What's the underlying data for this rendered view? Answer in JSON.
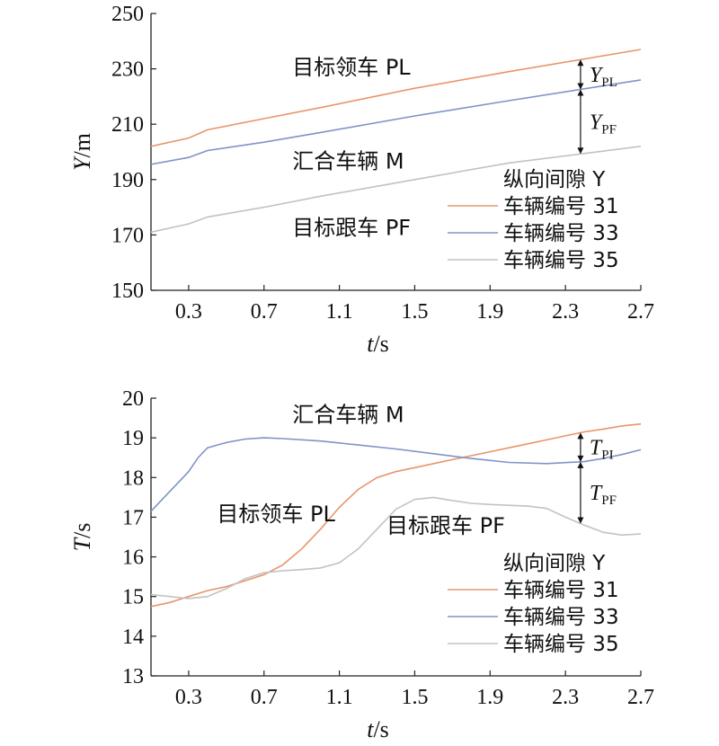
{
  "chart_data": [
    {
      "type": "line",
      "ylabel": "Y/m",
      "xlabel": "t/s",
      "xlim": [
        0.1,
        2.7
      ],
      "ylim": [
        150,
        250
      ],
      "x_ticks": [
        "0.3",
        "0.7",
        "1.1",
        "1.5",
        "1.9",
        "2.3",
        "2.7"
      ],
      "y_ticks": [
        "150",
        "170",
        "190",
        "210",
        "230",
        "250"
      ],
      "legend_title": "纵向间隙 Y",
      "legend_placement": "bottom-right",
      "annotations": [
        {
          "text": "目标领车 PL",
          "x": 0.85,
          "y": 228
        },
        {
          "text": "汇合车辆 M",
          "x": 0.85,
          "y": 194
        },
        {
          "text": "目标跟车 PF",
          "x": 0.85,
          "y": 170
        }
      ],
      "gap_labels": [
        {
          "main": "Y",
          "sub": "PL"
        },
        {
          "main": "Y",
          "sub": "PF"
        }
      ],
      "gap_x": 2.38,
      "series": [
        {
          "name": "车辆编号 31",
          "color": "#e8956b",
          "x": [
            0.1,
            0.3,
            0.4,
            0.7,
            1.0,
            1.5,
            2.0,
            2.7
          ],
          "y": [
            202,
            205,
            208,
            212,
            216,
            223,
            229,
            237
          ]
        },
        {
          "name": "车辆编号 33",
          "color": "#7f93c8",
          "x": [
            0.1,
            0.3,
            0.4,
            0.7,
            1.0,
            1.5,
            2.0,
            2.7
          ],
          "y": [
            195.5,
            198,
            200.5,
            203.5,
            207,
            213,
            218.5,
            226
          ]
        },
        {
          "name": "车辆编号 35",
          "color": "#c2c2c2",
          "x": [
            0.1,
            0.3,
            0.4,
            0.7,
            1.0,
            1.5,
            2.0,
            2.7
          ],
          "y": [
            171,
            174,
            176.5,
            180,
            184,
            190,
            196,
            202
          ]
        }
      ]
    },
    {
      "type": "line",
      "ylabel": "T/s",
      "xlabel": "t/s",
      "xlim": [
        0.1,
        2.7
      ],
      "ylim": [
        13,
        20
      ],
      "x_ticks": [
        "0.3",
        "0.7",
        "1.1",
        "1.5",
        "1.9",
        "2.3",
        "2.7"
      ],
      "y_ticks": [
        "13",
        "14",
        "15",
        "16",
        "17",
        "18",
        "19",
        "20"
      ],
      "legend_title": "纵向间隙 Y",
      "legend_placement": "bottom-right",
      "annotations": [
        {
          "text": "汇合车辆 M",
          "x": 0.85,
          "y": 19.4
        },
        {
          "text": "目标领车 PL",
          "x": 0.45,
          "y": 16.9
        },
        {
          "text": "目标跟车 PF",
          "x": 1.35,
          "y": 16.6
        }
      ],
      "gap_labels": [
        {
          "main": "T",
          "sub": "PI"
        },
        {
          "main": "T",
          "sub": "PF"
        }
      ],
      "gap_x": 2.38,
      "series": [
        {
          "name": "车辆编号 31",
          "color": "#e8956b",
          "x": [
            0.1,
            0.2,
            0.3,
            0.4,
            0.5,
            0.6,
            0.7,
            0.8,
            0.9,
            1.0,
            1.1,
            1.2,
            1.3,
            1.4,
            1.5,
            1.6,
            1.7,
            1.8,
            1.9,
            2.0,
            2.1,
            2.2,
            2.3,
            2.4,
            2.5,
            2.6,
            2.7
          ],
          "y": [
            14.75,
            14.85,
            15.0,
            15.15,
            15.25,
            15.4,
            15.55,
            15.8,
            16.2,
            16.7,
            17.25,
            17.7,
            18.0,
            18.15,
            18.25,
            18.35,
            18.45,
            18.55,
            18.65,
            18.75,
            18.85,
            18.95,
            19.05,
            19.15,
            19.22,
            19.3,
            19.35
          ]
        },
        {
          "name": "车辆编号 33",
          "color": "#7f93c8",
          "x": [
            0.1,
            0.2,
            0.3,
            0.35,
            0.4,
            0.5,
            0.6,
            0.7,
            0.8,
            1.0,
            1.2,
            1.4,
            1.6,
            1.8,
            2.0,
            2.2,
            2.4,
            2.5,
            2.6,
            2.7
          ],
          "y": [
            17.15,
            17.65,
            18.15,
            18.5,
            18.75,
            18.88,
            18.97,
            19.0,
            18.98,
            18.92,
            18.82,
            18.72,
            18.6,
            18.48,
            18.38,
            18.35,
            18.4,
            18.48,
            18.58,
            18.7
          ]
        },
        {
          "name": "车辆编号 35",
          "color": "#c2c2c2",
          "x": [
            0.1,
            0.2,
            0.3,
            0.4,
            0.5,
            0.6,
            0.7,
            0.8,
            0.9,
            1.0,
            1.1,
            1.2,
            1.3,
            1.4,
            1.5,
            1.6,
            1.7,
            1.8,
            1.9,
            2.0,
            2.1,
            2.2,
            2.3,
            2.4,
            2.5,
            2.6,
            2.7
          ],
          "y": [
            15.05,
            15.0,
            14.95,
            15.0,
            15.2,
            15.45,
            15.6,
            15.65,
            15.68,
            15.72,
            15.85,
            16.2,
            16.7,
            17.2,
            17.45,
            17.5,
            17.42,
            17.35,
            17.32,
            17.3,
            17.28,
            17.22,
            17.0,
            16.8,
            16.62,
            16.55,
            16.58
          ]
        }
      ]
    }
  ]
}
